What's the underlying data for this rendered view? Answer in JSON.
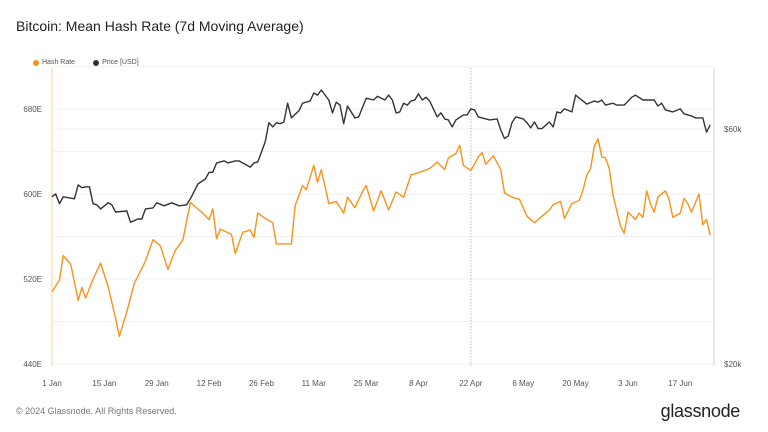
{
  "title": "Bitcoin: Mean Hash Rate (7d Moving Average)",
  "footer": "© 2024 Glassnode. All Rights Reserved.",
  "logo": "glassnode",
  "colors": {
    "hash_rate": "#f7931a",
    "price": "#333333",
    "event_line": "#bbbbbb"
  },
  "chart_data": {
    "type": "line",
    "title": "Bitcoin: Mean Hash Rate (7d Moving Average)",
    "legend": {
      "placement": "top-left",
      "entries": [
        "Hash Rate",
        "Price [USD]"
      ]
    },
    "grid": true,
    "x_ticks": [
      "1 Jan",
      "15 Jan",
      "29 Jan",
      "12 Feb",
      "26 Feb",
      "11 Mar",
      "25 Mar",
      "8 Apr",
      "22 Apr",
      "6 May",
      "20 May",
      "3 Jun",
      "17 Jun"
    ],
    "x_tick_dates": [
      "2024-01-01",
      "2024-01-15",
      "2024-01-29",
      "2024-02-12",
      "2024-02-26",
      "2024-03-11",
      "2024-03-25",
      "2024-04-08",
      "2024-04-22",
      "2024-05-06",
      "2024-05-20",
      "2024-06-03",
      "2024-06-17"
    ],
    "xlim": [
      "2024-01-01",
      "2024-06-26"
    ],
    "event_marker_date": "2024-04-22",
    "y_left": {
      "ticks": [
        "440E",
        "520E",
        "600E",
        "680E"
      ],
      "tick_values": [
        440,
        520,
        600,
        680
      ],
      "ylim": [
        440,
        720
      ],
      "unit": "EH/s",
      "scale": "linear"
    },
    "y_right": {
      "ticks": [
        "$20k",
        "$60k"
      ],
      "tick_values": [
        20000,
        60000
      ],
      "scale": "log"
    },
    "series": [
      {
        "name": "Hash Rate",
        "axis": "left",
        "points": [
          [
            "2024-01-01",
            508
          ],
          [
            "2024-01-03",
            519
          ],
          [
            "2024-01-04",
            542
          ],
          [
            "2024-01-06",
            534
          ],
          [
            "2024-01-08",
            500
          ],
          [
            "2024-01-09",
            512
          ],
          [
            "2024-01-10",
            502
          ],
          [
            "2024-01-12",
            520
          ],
          [
            "2024-01-14",
            535
          ],
          [
            "2024-01-16",
            513
          ],
          [
            "2024-01-18",
            483
          ],
          [
            "2024-01-19",
            466
          ],
          [
            "2024-01-21",
            489
          ],
          [
            "2024-01-23",
            516
          ],
          [
            "2024-01-26",
            537
          ],
          [
            "2024-01-28",
            557
          ],
          [
            "2024-01-30",
            551
          ],
          [
            "2024-02-01",
            529
          ],
          [
            "2024-02-03",
            547
          ],
          [
            "2024-02-05",
            557
          ],
          [
            "2024-02-07",
            592
          ],
          [
            "2024-02-10",
            583
          ],
          [
            "2024-02-12",
            576
          ],
          [
            "2024-02-13",
            586
          ],
          [
            "2024-02-14",
            558
          ],
          [
            "2024-02-15",
            567
          ],
          [
            "2024-02-18",
            562
          ],
          [
            "2024-02-19",
            544
          ],
          [
            "2024-02-21",
            564
          ],
          [
            "2024-02-23",
            566
          ],
          [
            "2024-02-24",
            559
          ],
          [
            "2024-02-25",
            582
          ],
          [
            "2024-02-27",
            577
          ],
          [
            "2024-02-29",
            573
          ],
          [
            "2024-03-01",
            553
          ],
          [
            "2024-03-03",
            553
          ],
          [
            "2024-03-05",
            553
          ],
          [
            "2024-03-06",
            589
          ],
          [
            "2024-03-08",
            608
          ],
          [
            "2024-03-09",
            604
          ],
          [
            "2024-03-11",
            627
          ],
          [
            "2024-03-12",
            611
          ],
          [
            "2024-03-13",
            623
          ],
          [
            "2024-03-15",
            591
          ],
          [
            "2024-03-17",
            593
          ],
          [
            "2024-03-19",
            582
          ],
          [
            "2024-03-20",
            597
          ],
          [
            "2024-03-22",
            587
          ],
          [
            "2024-03-24",
            602
          ],
          [
            "2024-03-25",
            608
          ],
          [
            "2024-03-27",
            584
          ],
          [
            "2024-03-29",
            603
          ],
          [
            "2024-03-31",
            585
          ],
          [
            "2024-04-02",
            602
          ],
          [
            "2024-04-04",
            597
          ],
          [
            "2024-04-06",
            618
          ],
          [
            "2024-04-08",
            620
          ],
          [
            "2024-04-11",
            624
          ],
          [
            "2024-04-13",
            630
          ],
          [
            "2024-04-15",
            623
          ],
          [
            "2024-04-16",
            634
          ],
          [
            "2024-04-18",
            638
          ],
          [
            "2024-04-19",
            646
          ],
          [
            "2024-04-20",
            627
          ],
          [
            "2024-04-22",
            622
          ],
          [
            "2024-04-24",
            635
          ],
          [
            "2024-04-25",
            639
          ],
          [
            "2024-04-26",
            628
          ],
          [
            "2024-04-28",
            636
          ],
          [
            "2024-04-30",
            623
          ],
          [
            "2024-05-01",
            601
          ],
          [
            "2024-05-03",
            597
          ],
          [
            "2024-05-05",
            595
          ],
          [
            "2024-05-07",
            579
          ],
          [
            "2024-05-09",
            573
          ],
          [
            "2024-05-11",
            579
          ],
          [
            "2024-05-13",
            585
          ],
          [
            "2024-05-14",
            590
          ],
          [
            "2024-05-16",
            593
          ],
          [
            "2024-05-17",
            577
          ],
          [
            "2024-05-19",
            591
          ],
          [
            "2024-05-21",
            594
          ],
          [
            "2024-05-22",
            604
          ],
          [
            "2024-05-23",
            618
          ],
          [
            "2024-05-24",
            624
          ],
          [
            "2024-05-25",
            645
          ],
          [
            "2024-05-26",
            652
          ],
          [
            "2024-05-27",
            635
          ],
          [
            "2024-05-28",
            634
          ],
          [
            "2024-05-29",
            624
          ],
          [
            "2024-05-30",
            599
          ],
          [
            "2024-06-01",
            570
          ],
          [
            "2024-06-02",
            563
          ],
          [
            "2024-06-03",
            583
          ],
          [
            "2024-06-05",
            576
          ],
          [
            "2024-06-06",
            582
          ],
          [
            "2024-06-07",
            578
          ],
          [
            "2024-06-08",
            603
          ],
          [
            "2024-06-09",
            591
          ],
          [
            "2024-06-10",
            583
          ],
          [
            "2024-06-11",
            597
          ],
          [
            "2024-06-13",
            603
          ],
          [
            "2024-06-14",
            595
          ],
          [
            "2024-06-15",
            578
          ],
          [
            "2024-06-17",
            582
          ],
          [
            "2024-06-18",
            596
          ],
          [
            "2024-06-19",
            591
          ],
          [
            "2024-06-20",
            583
          ],
          [
            "2024-06-22",
            600
          ],
          [
            "2024-06-23",
            571
          ],
          [
            "2024-06-24",
            576
          ],
          [
            "2024-06-25",
            561
          ]
        ]
      },
      {
        "name": "Price [USD]",
        "axis": "right",
        "points": [
          [
            "2024-01-01",
            43700
          ],
          [
            "2024-01-02",
            44300
          ],
          [
            "2024-01-03",
            42300
          ],
          [
            "2024-01-04",
            43700
          ],
          [
            "2024-01-07",
            43300
          ],
          [
            "2024-01-08",
            46200
          ],
          [
            "2024-01-09",
            45600
          ],
          [
            "2024-01-10",
            45800
          ],
          [
            "2024-01-11",
            45800
          ],
          [
            "2024-01-12",
            42300
          ],
          [
            "2024-01-13",
            42100
          ],
          [
            "2024-01-14",
            41300
          ],
          [
            "2024-01-16",
            42500
          ],
          [
            "2024-01-17",
            42100
          ],
          [
            "2024-01-18",
            40700
          ],
          [
            "2024-01-21",
            40900
          ],
          [
            "2024-01-22",
            38800
          ],
          [
            "2024-01-24",
            39400
          ],
          [
            "2024-01-25",
            39400
          ],
          [
            "2024-01-26",
            41300
          ],
          [
            "2024-01-28",
            41500
          ],
          [
            "2024-01-29",
            42500
          ],
          [
            "2024-01-31",
            41900
          ],
          [
            "2024-02-02",
            42500
          ],
          [
            "2024-02-04",
            41900
          ],
          [
            "2024-02-06",
            42100
          ],
          [
            "2024-02-07",
            43300
          ],
          [
            "2024-02-09",
            46400
          ],
          [
            "2024-02-11",
            47500
          ],
          [
            "2024-02-12",
            49000
          ],
          [
            "2024-02-13",
            49000
          ],
          [
            "2024-02-14",
            51200
          ],
          [
            "2024-02-16",
            51700
          ],
          [
            "2024-02-17",
            51200
          ],
          [
            "2024-02-19",
            51700
          ],
          [
            "2024-02-20",
            51700
          ],
          [
            "2024-02-23",
            50200
          ],
          [
            "2024-02-24",
            51200
          ],
          [
            "2024-02-25",
            51400
          ],
          [
            "2024-02-27",
            56500
          ],
          [
            "2024-02-28",
            61800
          ],
          [
            "2024-02-29",
            60600
          ],
          [
            "2024-03-01",
            61800
          ],
          [
            "2024-03-02",
            61500
          ],
          [
            "2024-03-03",
            62000
          ],
          [
            "2024-03-04",
            67700
          ],
          [
            "2024-03-05",
            63200
          ],
          [
            "2024-03-07",
            65300
          ],
          [
            "2024-03-08",
            67700
          ],
          [
            "2024-03-10",
            68400
          ],
          [
            "2024-03-11",
            71000
          ],
          [
            "2024-03-12",
            70300
          ],
          [
            "2024-03-13",
            72000
          ],
          [
            "2024-03-15",
            68700
          ],
          [
            "2024-03-16",
            64700
          ],
          [
            "2024-03-17",
            68000
          ],
          [
            "2024-03-18",
            67100
          ],
          [
            "2024-03-19",
            61500
          ],
          [
            "2024-03-20",
            66800
          ],
          [
            "2024-03-22",
            63200
          ],
          [
            "2024-03-23",
            63500
          ],
          [
            "2024-03-25",
            69300
          ],
          [
            "2024-03-27",
            68700
          ],
          [
            "2024-03-28",
            69900
          ],
          [
            "2024-03-30",
            68700
          ],
          [
            "2024-03-31",
            70300
          ],
          [
            "2024-04-01",
            68700
          ],
          [
            "2024-04-02",
            64700
          ],
          [
            "2024-04-03",
            65000
          ],
          [
            "2024-04-04",
            67700
          ],
          [
            "2024-04-05",
            67100
          ],
          [
            "2024-04-06",
            68400
          ],
          [
            "2024-04-07",
            68700
          ],
          [
            "2024-04-08",
            70700
          ],
          [
            "2024-04-09",
            68700
          ],
          [
            "2024-04-10",
            69600
          ],
          [
            "2024-04-11",
            68400
          ],
          [
            "2024-04-13",
            63500
          ],
          [
            "2024-04-14",
            64700
          ],
          [
            "2024-04-15",
            62900
          ],
          [
            "2024-04-16",
            62600
          ],
          [
            "2024-04-17",
            60600
          ],
          [
            "2024-04-18",
            62600
          ],
          [
            "2024-04-20",
            64100
          ],
          [
            "2024-04-21",
            64100
          ],
          [
            "2024-04-22",
            65900
          ],
          [
            "2024-04-23",
            65600
          ],
          [
            "2024-04-24",
            63500
          ],
          [
            "2024-04-25",
            63200
          ],
          [
            "2024-04-27",
            62600
          ],
          [
            "2024-04-29",
            62900
          ],
          [
            "2024-04-30",
            59700
          ],
          [
            "2024-05-01",
            57400
          ],
          [
            "2024-05-02",
            58100
          ],
          [
            "2024-05-03",
            61800
          ],
          [
            "2024-05-04",
            63500
          ],
          [
            "2024-05-06",
            62900
          ],
          [
            "2024-05-07",
            61800
          ],
          [
            "2024-05-08",
            60300
          ],
          [
            "2024-05-09",
            62000
          ],
          [
            "2024-05-10",
            60100
          ],
          [
            "2024-05-11",
            60100
          ],
          [
            "2024-05-13",
            62000
          ],
          [
            "2024-05-14",
            60600
          ],
          [
            "2024-05-15",
            65000
          ],
          [
            "2024-05-16",
            64700
          ],
          [
            "2024-05-17",
            65900
          ],
          [
            "2024-05-19",
            65000
          ],
          [
            "2024-05-20",
            70300
          ],
          [
            "2024-05-21",
            69300
          ],
          [
            "2024-05-23",
            67400
          ],
          [
            "2024-05-25",
            68400
          ],
          [
            "2024-05-26",
            68000
          ],
          [
            "2024-05-27",
            68700
          ],
          [
            "2024-05-28",
            67100
          ],
          [
            "2024-05-30",
            67700
          ],
          [
            "2024-05-31",
            67100
          ],
          [
            "2024-06-02",
            67100
          ],
          [
            "2024-06-04",
            69600
          ],
          [
            "2024-06-05",
            70300
          ],
          [
            "2024-06-07",
            68700
          ],
          [
            "2024-06-10",
            68700
          ],
          [
            "2024-06-11",
            66800
          ],
          [
            "2024-06-12",
            67700
          ],
          [
            "2024-06-13",
            65600
          ],
          [
            "2024-06-15",
            65000
          ],
          [
            "2024-06-17",
            65900
          ],
          [
            "2024-06-18",
            64400
          ],
          [
            "2024-06-20",
            63800
          ],
          [
            "2024-06-21",
            63200
          ],
          [
            "2024-06-23",
            63200
          ],
          [
            "2024-06-24",
            59100
          ],
          [
            "2024-06-25",
            61100
          ]
        ]
      }
    ]
  }
}
